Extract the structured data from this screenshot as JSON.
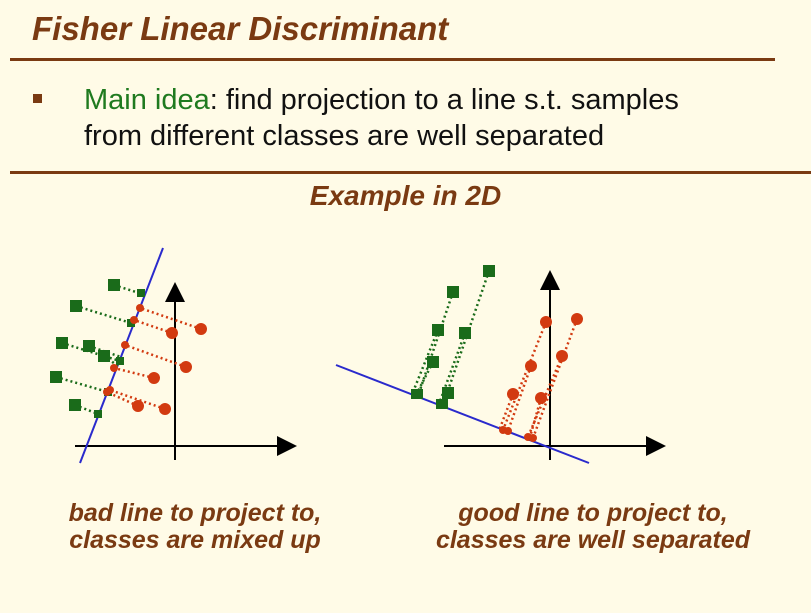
{
  "header": {
    "title": "Fisher Linear Discriminant"
  },
  "bullet": {
    "lead": "Main idea",
    "line1": ":  find projection to a line s.t. samples",
    "line2": "from different classes are well separated"
  },
  "example_title": "Example in 2D",
  "captions": {
    "bad_line1": "bad line to project to,",
    "bad_line2": "classes are mixed up",
    "good_line1": "good line to project to,",
    "good_line2": "classes are well separated"
  },
  "colors": {
    "title": "#7a3a12",
    "class_a": "#1a6b1a",
    "class_b": "#d23a10",
    "projection_line": "#2a2acc",
    "lead_text": "#1f7a1f"
  }
}
